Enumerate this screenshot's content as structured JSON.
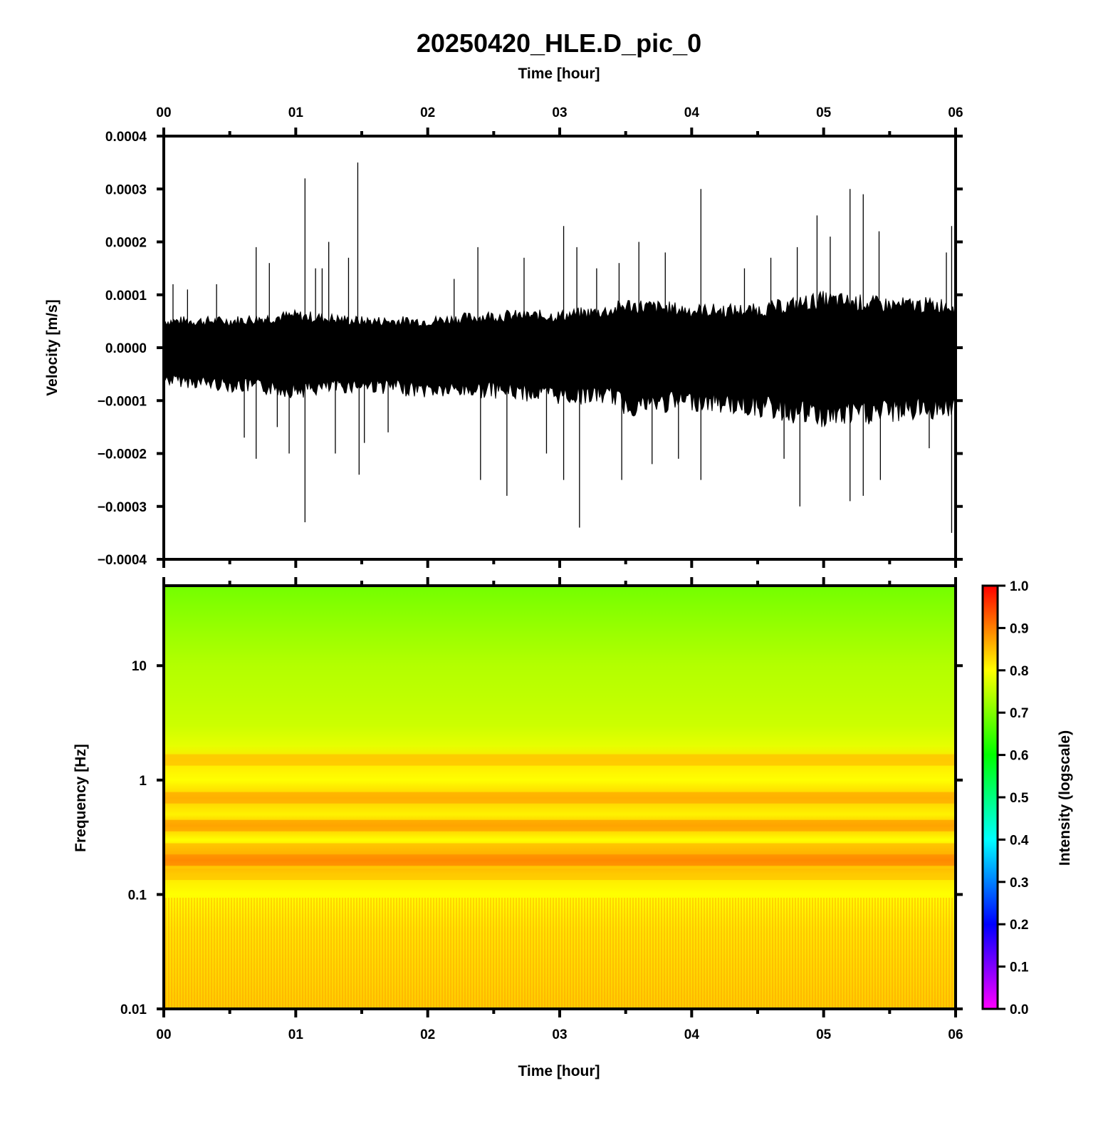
{
  "title": "20250420_HLE.D_pic_0",
  "chart_data": [
    {
      "type": "line",
      "name": "waveform",
      "title": "20250420_HLE.D_pic_0",
      "xlabel": "Time [hour]",
      "ylabel": "Velocity [m/s]",
      "xlim": [
        0,
        6
      ],
      "ylim": [
        -0.0004,
        0.0004
      ],
      "x_ticks": [
        "00",
        "01",
        "02",
        "03",
        "04",
        "05",
        "06"
      ],
      "y_ticks": [
        "−0.0004",
        "−0.0003",
        "−0.0002",
        "−0.0001",
        "0.0000",
        "0.0001",
        "0.0002",
        "0.0003",
        "0.0004"
      ],
      "y_tick_values": [
        -0.0004,
        -0.0003,
        -0.0002,
        -0.0001,
        0,
        0.0001,
        0.0002,
        0.0003,
        0.0004
      ],
      "trace_color": "#000000",
      "envelope": {
        "x": [
          0,
          0.5,
          1,
          1.5,
          2,
          2.5,
          3,
          3.4,
          3.5,
          4,
          4.5,
          5,
          5.5,
          6
        ],
        "upper": [
          5e-05,
          5e-05,
          6e-05,
          5e-05,
          5e-05,
          6e-05,
          6e-05,
          7e-05,
          8e-05,
          7e-05,
          7e-05,
          9e-05,
          8e-05,
          8e-05
        ],
        "lower": [
          -6e-05,
          -7e-05,
          -8e-05,
          -7e-05,
          -8e-05,
          -8e-05,
          -9e-05,
          -9e-05,
          -0.00011,
          -0.0001,
          -0.00011,
          -0.00013,
          -0.00012,
          -0.00011
        ]
      },
      "spikes": [
        {
          "x": 0.07,
          "y": 0.00012
        },
        {
          "x": 0.18,
          "y": 0.00011
        },
        {
          "x": 0.4,
          "y": 0.00012
        },
        {
          "x": 0.61,
          "y": -0.00017
        },
        {
          "x": 0.7,
          "y": 0.00019
        },
        {
          "x": 0.7,
          "y": -0.00021
        },
        {
          "x": 0.8,
          "y": 0.00016
        },
        {
          "x": 0.86,
          "y": -0.00015
        },
        {
          "x": 0.95,
          "y": -0.0002
        },
        {
          "x": 1.07,
          "y": 0.00032
        },
        {
          "x": 1.07,
          "y": -0.00033
        },
        {
          "x": 1.15,
          "y": 0.00015
        },
        {
          "x": 1.2,
          "y": 0.00015
        },
        {
          "x": 1.25,
          "y": 0.0002
        },
        {
          "x": 1.3,
          "y": -0.0002
        },
        {
          "x": 1.4,
          "y": 0.00017
        },
        {
          "x": 1.47,
          "y": 0.00035
        },
        {
          "x": 1.48,
          "y": -0.00024
        },
        {
          "x": 1.52,
          "y": -0.00018
        },
        {
          "x": 1.7,
          "y": -0.00016
        },
        {
          "x": 2.2,
          "y": 0.00013
        },
        {
          "x": 2.38,
          "y": 0.00019
        },
        {
          "x": 2.4,
          "y": -0.00025
        },
        {
          "x": 2.6,
          "y": -0.00028
        },
        {
          "x": 2.73,
          "y": 0.00017
        },
        {
          "x": 2.9,
          "y": -0.0002
        },
        {
          "x": 3.03,
          "y": 0.00023
        },
        {
          "x": 3.03,
          "y": -0.00025
        },
        {
          "x": 3.13,
          "y": 0.00019
        },
        {
          "x": 3.15,
          "y": -0.00034
        },
        {
          "x": 3.28,
          "y": 0.00015
        },
        {
          "x": 3.45,
          "y": 0.00016
        },
        {
          "x": 3.47,
          "y": -0.00025
        },
        {
          "x": 3.6,
          "y": 0.0002
        },
        {
          "x": 3.7,
          "y": -0.00022
        },
        {
          "x": 3.8,
          "y": 0.00018
        },
        {
          "x": 3.9,
          "y": -0.00021
        },
        {
          "x": 4.07,
          "y": 0.0003
        },
        {
          "x": 4.07,
          "y": -0.00025
        },
        {
          "x": 4.4,
          "y": 0.00015
        },
        {
          "x": 4.6,
          "y": 0.00017
        },
        {
          "x": 4.7,
          "y": -0.00021
        },
        {
          "x": 4.8,
          "y": 0.00019
        },
        {
          "x": 4.82,
          "y": -0.0003
        },
        {
          "x": 4.95,
          "y": 0.00025
        },
        {
          "x": 5.05,
          "y": 0.00021
        },
        {
          "x": 5.2,
          "y": 0.0003
        },
        {
          "x": 5.2,
          "y": -0.00029
        },
        {
          "x": 5.3,
          "y": 0.00029
        },
        {
          "x": 5.3,
          "y": -0.00028
        },
        {
          "x": 5.42,
          "y": 0.00022
        },
        {
          "x": 5.43,
          "y": -0.00025
        },
        {
          "x": 5.8,
          "y": -0.00019
        },
        {
          "x": 5.93,
          "y": 0.00018
        },
        {
          "x": 5.97,
          "y": 0.00023
        },
        {
          "x": 5.97,
          "y": -0.00035
        }
      ]
    },
    {
      "type": "heatmap",
      "name": "spectrogram",
      "xlabel": "Time [hour]",
      "ylabel": "Frequency [Hz]",
      "xlim": [
        0,
        6
      ],
      "ylim": [
        0.01,
        50
      ],
      "y_scale": "log",
      "x_ticks": [
        "00",
        "01",
        "02",
        "03",
        "04",
        "05",
        "06"
      ],
      "y_ticks": [
        "0.01",
        "0.1",
        "1",
        "10"
      ],
      "y_tick_values": [
        0.01,
        0.1,
        1,
        10
      ],
      "intensity_profile": {
        "freq_hz": [
          0.01,
          0.05,
          0.1,
          0.15,
          0.2,
          0.25,
          0.3,
          0.4,
          0.5,
          0.7,
          1,
          1.5,
          2,
          3,
          5,
          10,
          20,
          50
        ],
        "intensity": [
          0.84,
          0.82,
          0.8,
          0.82,
          0.87,
          0.83,
          0.8,
          0.85,
          0.81,
          0.84,
          0.8,
          0.82,
          0.78,
          0.76,
          0.75,
          0.74,
          0.72,
          0.69
        ]
      },
      "colorbar": {
        "label": "Intensity (logscale)",
        "range": [
          0,
          1
        ],
        "ticks": [
          "0.0",
          "0.1",
          "0.2",
          "0.3",
          "0.4",
          "0.5",
          "0.6",
          "0.7",
          "0.8",
          "0.9",
          "1.0"
        ],
        "tick_values": [
          0,
          0.1,
          0.2,
          0.3,
          0.4,
          0.5,
          0.6,
          0.7,
          0.8,
          0.9,
          1.0
        ],
        "colors": [
          "#ff00ff",
          "#8000ff",
          "#0000ff",
          "#0080ff",
          "#00ffff",
          "#00ff80",
          "#00ff00",
          "#80ff00",
          "#ffff00",
          "#ff8000",
          "#ff0000"
        ]
      }
    }
  ]
}
